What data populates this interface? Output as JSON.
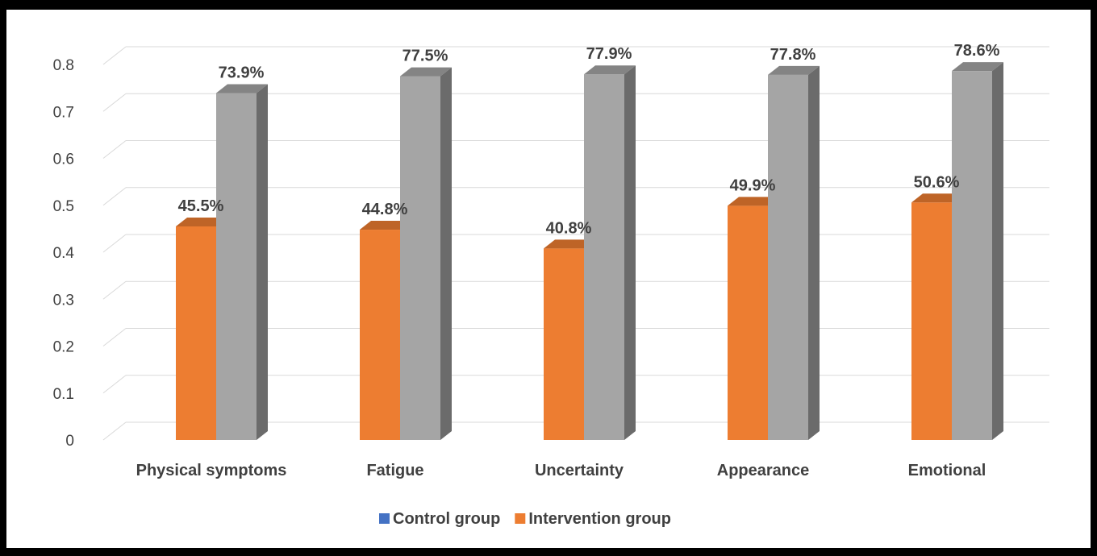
{
  "chart_data": {
    "type": "bar",
    "style": "3d-clustered-column",
    "categories": [
      "Physical symptoms",
      "Fatigue",
      "Uncertainty",
      "Appearance",
      "Emotional"
    ],
    "series": [
      {
        "name": "Control group",
        "values": [
          0.739,
          0.775,
          0.779,
          0.778,
          0.786
        ],
        "labels": [
          "73.9%",
          "77.5%",
          "77.9%",
          "77.8%",
          "78.6%"
        ],
        "color": "#A5A5A5",
        "legend_color": "#4472C4"
      },
      {
        "name": "Intervention group",
        "values": [
          0.455,
          0.448,
          0.408,
          0.499,
          0.506
        ],
        "labels": [
          "45.5%",
          "44.8%",
          "40.8%",
          "49.9%",
          "50.6%"
        ],
        "color": "#ED7D31",
        "legend_color": "#ED7D31"
      }
    ],
    "yticks": [
      "0",
      "0.1",
      "0.2",
      "0.3",
      "0.4",
      "0.5",
      "0.6",
      "0.7",
      "0.8"
    ],
    "ylim": [
      0,
      0.8
    ],
    "grid": true,
    "legend_position": "bottom",
    "title": "",
    "xlabel": "",
    "ylabel": ""
  }
}
